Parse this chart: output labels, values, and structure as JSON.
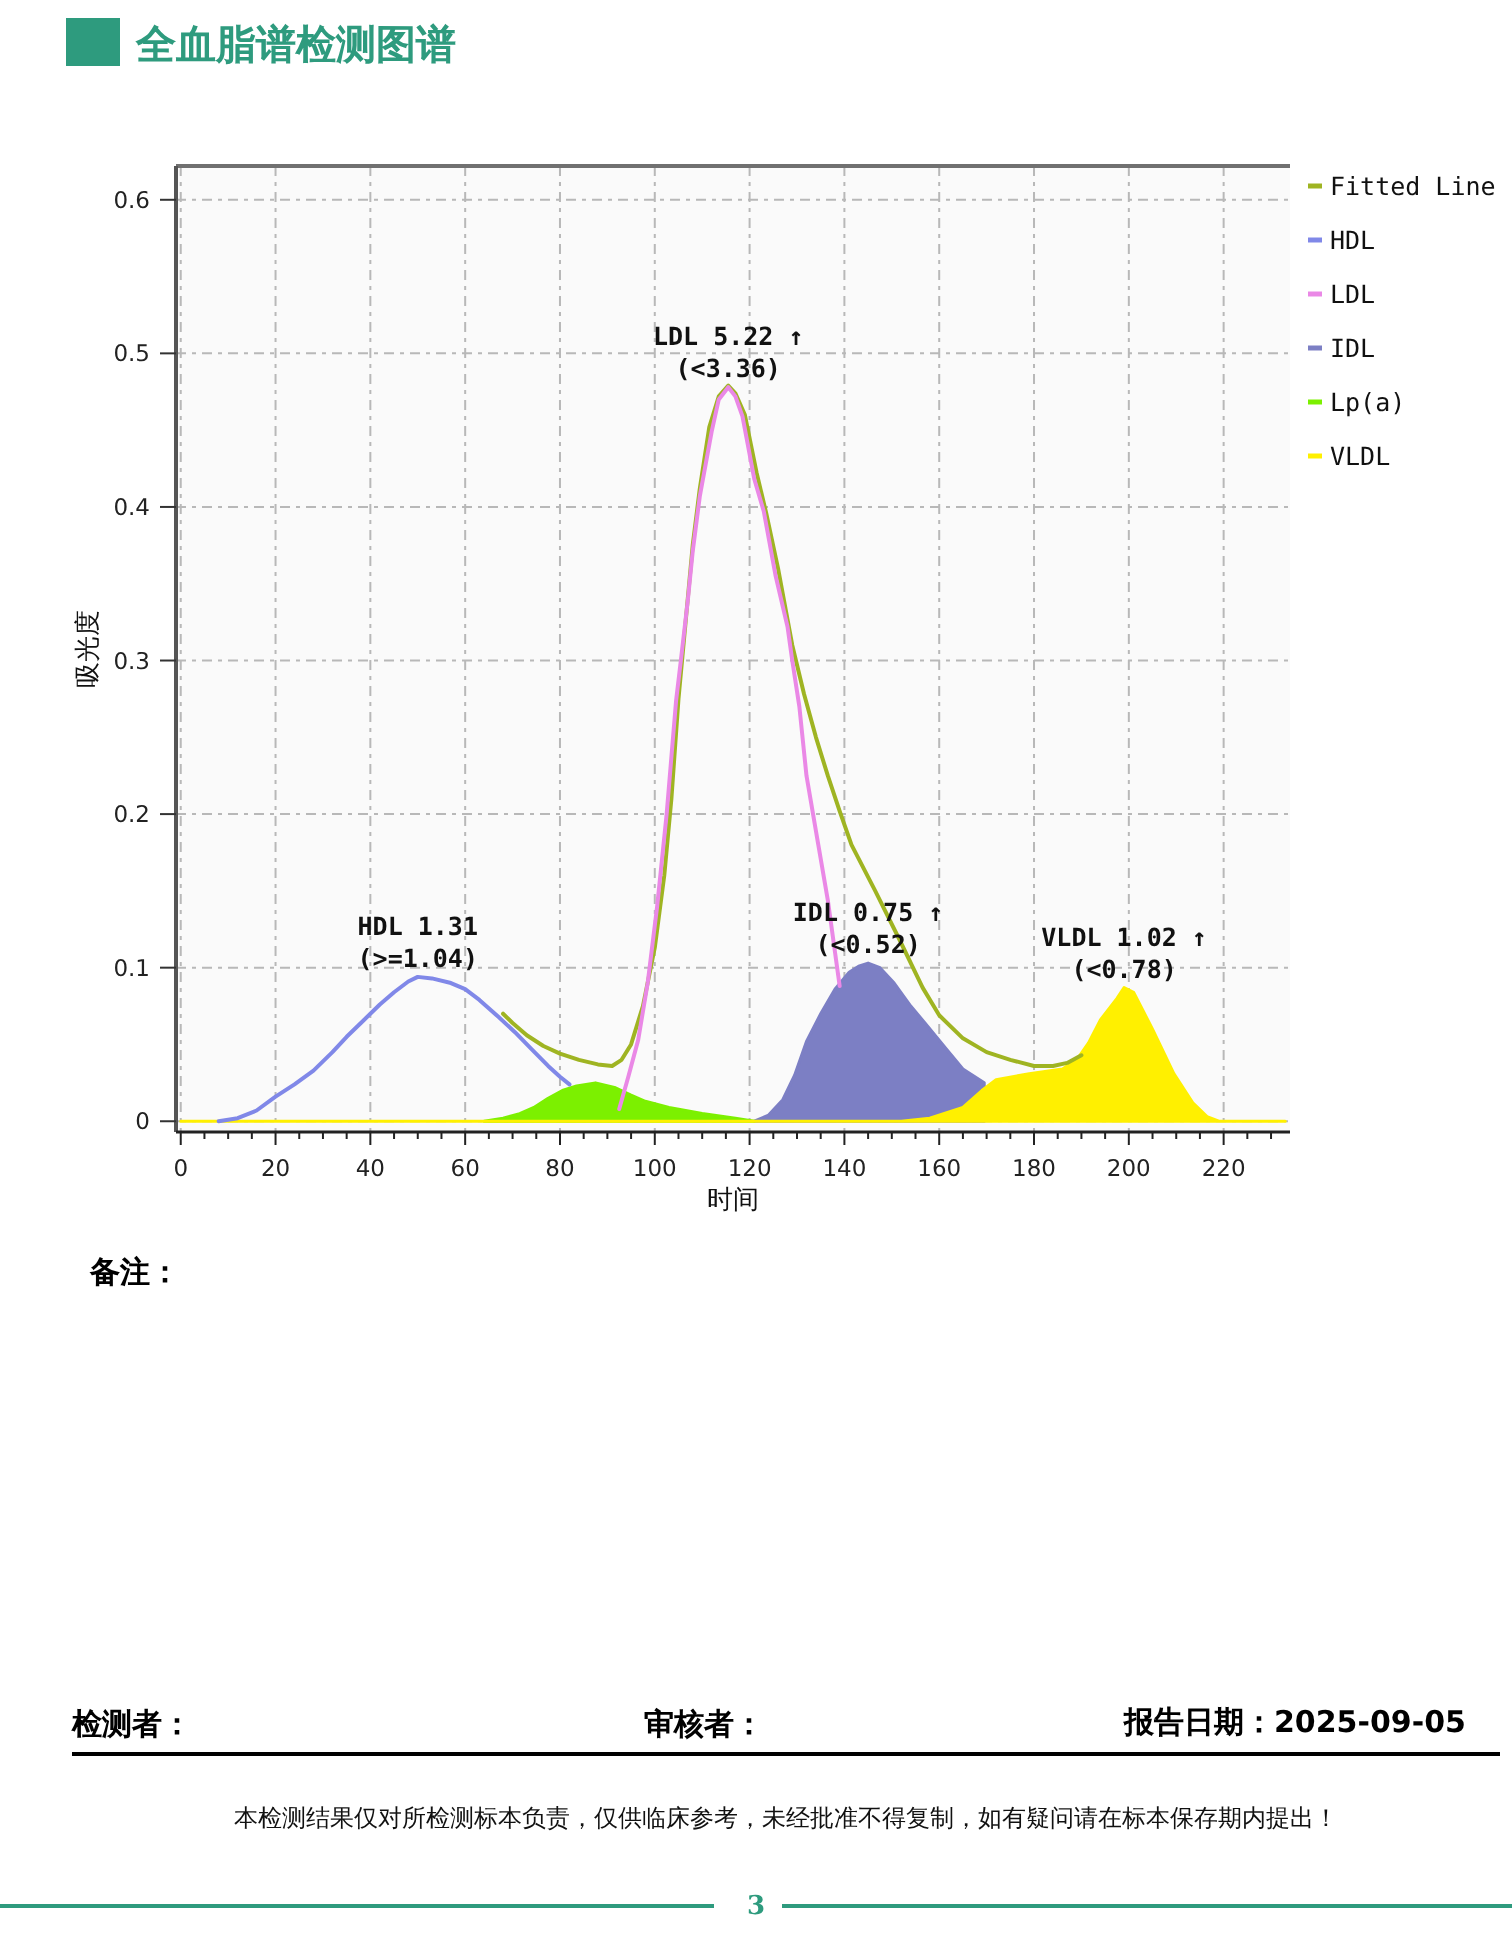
{
  "chart_data": {
    "type": "line",
    "title": "全血脂谱检测图谱",
    "xlabel": "时间",
    "ylabel": "吸光度",
    "xlim": [
      -1,
      234
    ],
    "ylim": [
      -0.007,
      0.622
    ],
    "xticks": [
      0,
      {
        "value": 5,
        "label": null
      },
      {
        "value": 10,
        "label": null
      },
      {
        "value": 15,
        "label": null
      },
      20,
      {
        "value": 25,
        "label": null
      },
      {
        "value": 30,
        "label": null
      },
      {
        "value": 35,
        "label": null
      },
      40,
      {
        "value": 45,
        "label": null
      },
      {
        "value": 50,
        "label": null
      },
      {
        "value": 55,
        "label": null
      },
      60,
      {
        "value": 65,
        "label": null
      },
      {
        "value": 70,
        "label": null
      },
      {
        "value": 75,
        "label": null
      },
      80,
      {
        "value": 85,
        "label": null
      },
      {
        "value": 90,
        "label": null
      },
      {
        "value": 95,
        "label": null
      },
      100,
      {
        "value": 105,
        "label": null
      },
      {
        "value": 110,
        "label": null
      },
      {
        "value": 115,
        "label": null
      },
      120,
      {
        "value": 125,
        "label": null
      },
      {
        "value": 130,
        "label": null
      },
      {
        "value": 135,
        "label": null
      },
      140,
      {
        "value": 145,
        "label": null
      },
      {
        "value": 150,
        "label": null
      },
      {
        "value": 155,
        "label": null
      },
      160,
      {
        "value": 165,
        "label": null
      },
      {
        "value": 170,
        "label": null
      },
      {
        "value": 175,
        "label": null
      },
      180,
      {
        "value": 185,
        "label": null
      },
      {
        "value": 190,
        "label": null
      },
      {
        "value": 195,
        "label": null
      },
      200,
      {
        "value": 205,
        "label": null
      },
      {
        "value": 210,
        "label": null
      },
      {
        "value": 215,
        "label": null
      },
      220,
      {
        "value": 225,
        "label": null
      },
      {
        "value": 230,
        "label": null
      }
    ],
    "yticks": [
      0,
      0.1,
      0.2,
      0.3,
      0.4,
      0.5,
      0.6
    ],
    "grid": true,
    "legend": "top right",
    "series": [
      {
        "name": "Fitted Line",
        "color": "#9fb422",
        "x": [
          68,
          70,
          73,
          76.5,
          80,
          84,
          88,
          91,
          93,
          95,
          97.5,
          100,
          102,
          103.5,
          105,
          106.5,
          108,
          109.5,
          111.5,
          113.5,
          115.5,
          117,
          119,
          121.5,
          123.5,
          126,
          129,
          131.5,
          134,
          136.5,
          139,
          141.5,
          146.5,
          151.5,
          156.5,
          160,
          165,
          170,
          175,
          180,
          184,
          187,
          190
        ],
        "values": [
          0.07,
          0.064,
          0.056,
          0.049,
          0.044,
          0.04,
          0.037,
          0.036,
          0.04,
          0.05,
          0.075,
          0.113,
          0.16,
          0.21,
          0.275,
          0.325,
          0.375,
          0.412,
          0.452,
          0.472,
          0.479,
          0.474,
          0.46,
          0.422,
          0.396,
          0.36,
          0.31,
          0.278,
          0.25,
          0.225,
          0.202,
          0.18,
          0.15,
          0.119,
          0.087,
          0.069,
          0.054,
          0.045,
          0.04,
          0.036,
          0.036,
          0.038,
          0.043
        ]
      },
      {
        "name": "HDL",
        "color": "#8088e8",
        "x": [
          8,
          12,
          16,
          20,
          24,
          28,
          32,
          35,
          38,
          42,
          45,
          48,
          50,
          53,
          57,
          60,
          63,
          67,
          70.5,
          74,
          77.5,
          80,
          82
        ],
        "values": [
          0,
          0.002,
          0.007,
          0.016,
          0.024,
          0.033,
          0.045,
          0.055,
          0.064,
          0.076,
          0.084,
          0.091,
          0.094,
          0.093,
          0.09,
          0.086,
          0.079,
          0.068,
          0.058,
          0.047,
          0.036,
          0.029,
          0.024
        ]
      },
      {
        "name": "LDL",
        "color": "#ea88e6",
        "x": [
          92.5,
          94.5,
          96.5,
          98.5,
          100.5,
          102.5,
          104.5,
          105.5,
          107,
          108,
          109.5,
          112,
          113.5,
          115.5,
          117,
          118.5,
          121,
          123,
          125.5,
          128,
          129,
          130.5,
          132,
          134.5,
          136.5,
          139
        ],
        "values": [
          0.008,
          0.03,
          0.053,
          0.09,
          0.14,
          0.2,
          0.274,
          0.3,
          0.34,
          0.371,
          0.407,
          0.449,
          0.47,
          0.478,
          0.472,
          0.459,
          0.418,
          0.397,
          0.355,
          0.322,
          0.3,
          0.27,
          0.225,
          0.18,
          0.144,
          0.088
        ]
      },
      {
        "name": "IDL",
        "type": "area",
        "color": "#7c7fc4",
        "x": [
          121,
          124,
          127,
          129.5,
          132,
          135,
          138,
          141,
          143,
          145,
          147.5,
          150.5,
          154,
          157,
          161.5,
          165,
          169.5
        ],
        "values": [
          0,
          0.004,
          0.014,
          0.03,
          0.052,
          0.07,
          0.086,
          0.097,
          0.101,
          0.103,
          0.1,
          0.09,
          0.075,
          0.064,
          0.047,
          0.034,
          0.025
        ]
      },
      {
        "name": "Lp(a)",
        "type": "area",
        "color": "#7cf000",
        "x": [
          64,
          68,
          71.5,
          74.5,
          77.5,
          80.5,
          83.5,
          87.5,
          91.5,
          95,
          98,
          103,
          110,
          117,
          121
        ],
        "values": [
          0,
          0.002,
          0.005,
          0.009,
          0.015,
          0.02,
          0.023,
          0.025,
          0.022,
          0.017,
          0.013,
          0.009,
          0.005,
          0.002,
          0
        ]
      },
      {
        "name": "VLDL",
        "type": "area",
        "color": "#fff000",
        "x": [
          0,
          152,
          158,
          165,
          169,
          172,
          179,
          186,
          189,
          191.5,
          194,
          197.5,
          199,
          201,
          205,
          209.5,
          213.5,
          216.5,
          219,
          233
        ],
        "values": [
          0,
          0,
          0.002,
          0.009,
          0.02,
          0.027,
          0.031,
          0.034,
          0.04,
          0.051,
          0.066,
          0.08,
          0.087,
          0.084,
          0.06,
          0.031,
          0.012,
          0.003,
          0,
          0
        ]
      }
    ],
    "annotations": [
      {
        "text": "HDL 1.31\n(>=1.04)",
        "x": 50,
        "y": 0.094
      },
      {
        "text": "LDL 5.22 ↑\n(<3.36)",
        "x": 115.5,
        "y": 0.478
      },
      {
        "text": "IDL 0.75 ↑\n(<0.52)",
        "x": 145,
        "y": 0.103
      },
      {
        "text": "VLDL 1.02 ↑\n(<0.78)",
        "x": 199,
        "y": 0.087
      },
      "备注：",
      "检测者：",
      "审核者：",
      "报告日期：2025-09-05",
      "本检测结果仅对所检测标本负责，仅供临床参考，未经批准不得复制，如有疑问请在标本保存期内提出！",
      "3"
    ]
  }
}
